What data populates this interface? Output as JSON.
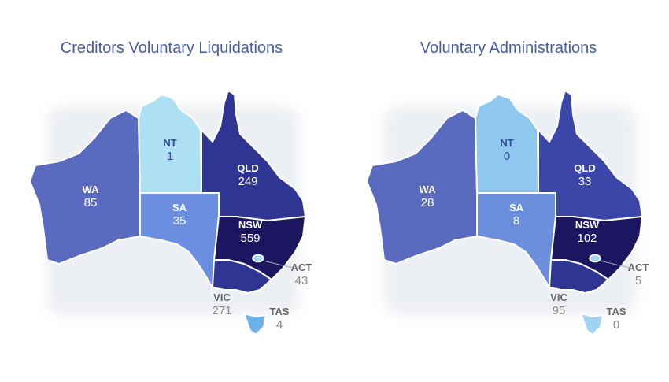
{
  "chart_data": [
    {
      "type": "choropleth",
      "title": "Creditors Voluntary Liquidations",
      "regions": [
        "WA",
        "NT",
        "QLD",
        "SA",
        "NSW",
        "ACT",
        "VIC",
        "TAS"
      ],
      "values": [
        85,
        1,
        249,
        35,
        559,
        43,
        271,
        4
      ],
      "colors": [
        "#5a6abf",
        "#aee0f4",
        "#2e3592",
        "#6b8ee0",
        "#1c1560",
        "#a8d8f0",
        "#2e3592",
        "#6bb2e8"
      ]
    },
    {
      "type": "choropleth",
      "title": "Voluntary Administrations",
      "regions": [
        "WA",
        "NT",
        "QLD",
        "SA",
        "NSW",
        "ACT",
        "VIC",
        "TAS"
      ],
      "values": [
        28,
        0,
        33,
        8,
        102,
        5,
        95,
        0
      ],
      "colors": [
        "#5a6abf",
        "#8ec8ee",
        "#3a47a8",
        "#6a8ddc",
        "#1c1560",
        "#a8d8f0",
        "#2e3592",
        "#9fd3f2"
      ]
    }
  ]
}
